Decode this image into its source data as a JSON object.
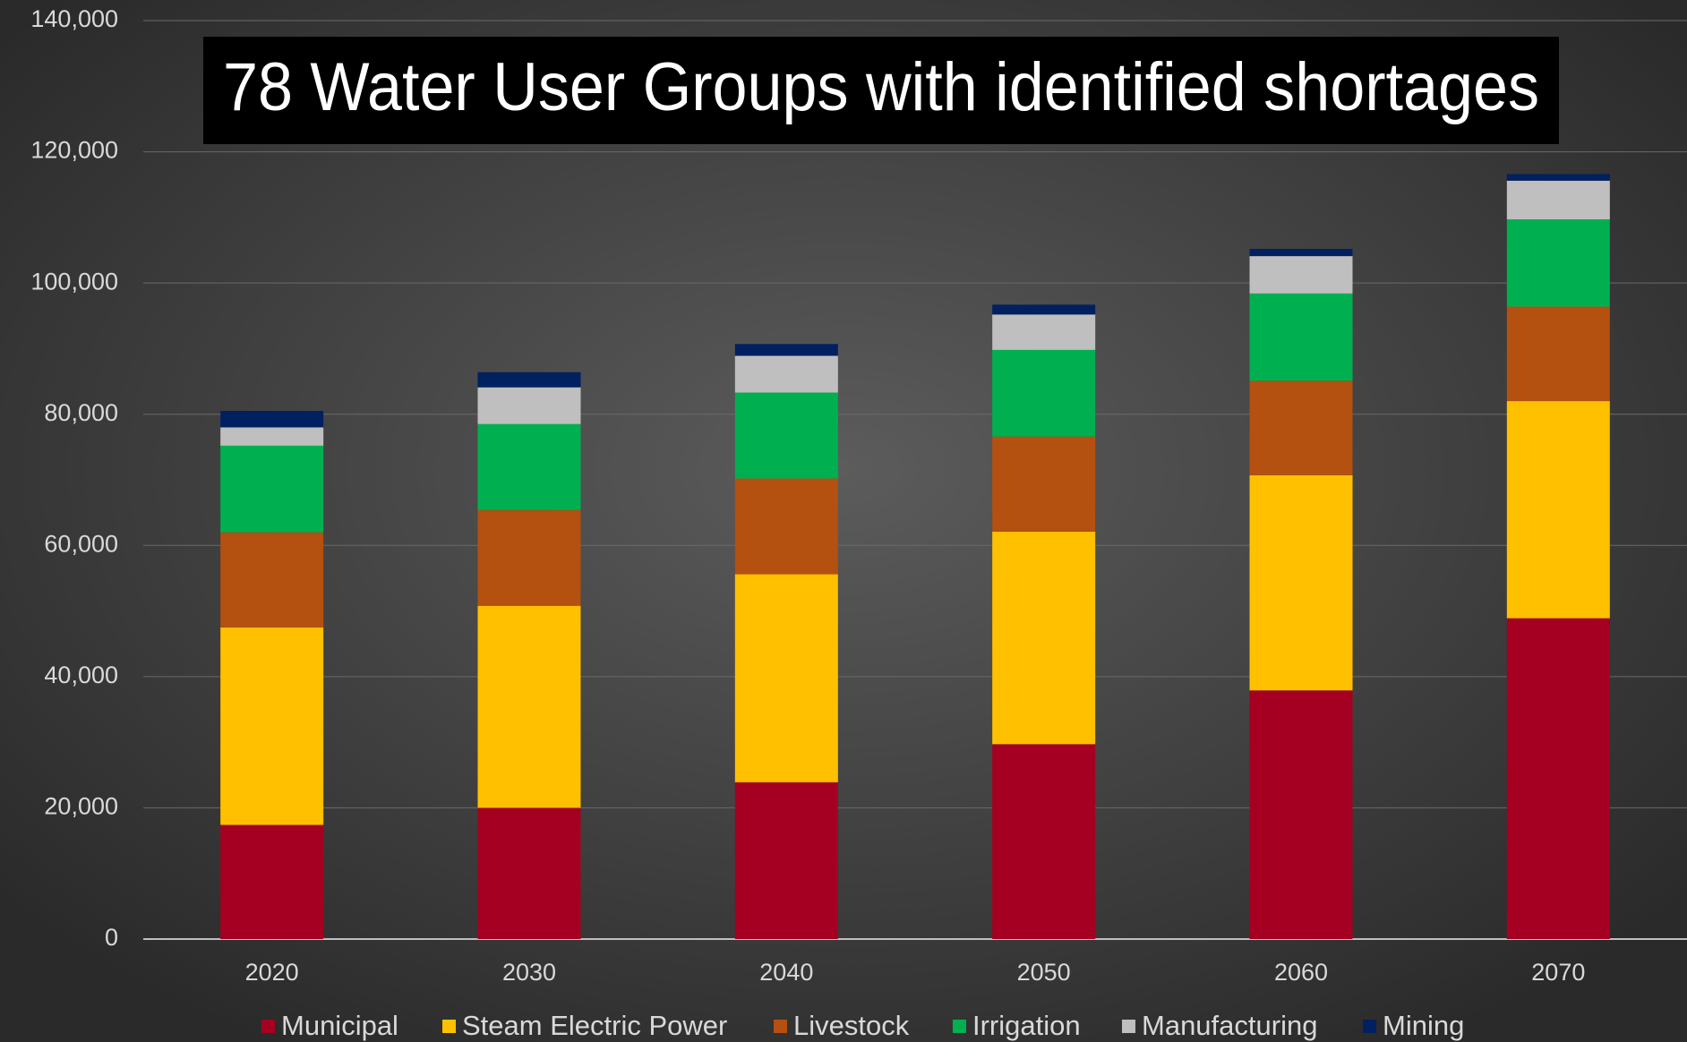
{
  "chart_data": {
    "type": "stacked_bar",
    "title": "78 Water User Groups with identified shortages",
    "categories": [
      "2020",
      "2030",
      "2040",
      "2050",
      "2060",
      "2070"
    ],
    "series": [
      {
        "name": "Municipal",
        "color": "#a50021",
        "values": [
          17400,
          20000,
          23900,
          29700,
          37900,
          48900
        ]
      },
      {
        "name": "Steam Electric Power",
        "color": "#ffc000",
        "values": [
          30100,
          30800,
          31700,
          32400,
          32800,
          33100
        ]
      },
      {
        "name": "Livestock",
        "color": "#b45010",
        "values": [
          14500,
          14600,
          14600,
          14500,
          14400,
          14400
        ]
      },
      {
        "name": "Irrigation",
        "color": "#00b050",
        "values": [
          13200,
          13100,
          13100,
          13200,
          13300,
          13300
        ]
      },
      {
        "name": "Manufacturing",
        "color": "#bfbfbf",
        "values": [
          2800,
          5600,
          5600,
          5400,
          5700,
          5900
        ]
      },
      {
        "name": "Mining",
        "color": "#002060",
        "values": [
          2500,
          2300,
          1800,
          1500,
          1100,
          1000
        ]
      }
    ],
    "ylim": [
      0,
      140000
    ],
    "yticks": [
      0,
      {
        "value": 20000,
        "label": "20,000"
      },
      {
        "value": 40000,
        "label": "40,000"
      },
      {
        "value": 60000,
        "label": "60,000"
      },
      {
        "value": 80000,
        "label": "80,000"
      },
      {
        "value": 100000,
        "label": "100,000"
      },
      {
        "value": 120000,
        "label": "120,000"
      },
      {
        "value": 140000,
        "label": "140,000"
      }
    ],
    "grid": true,
    "legend": "bottom"
  }
}
